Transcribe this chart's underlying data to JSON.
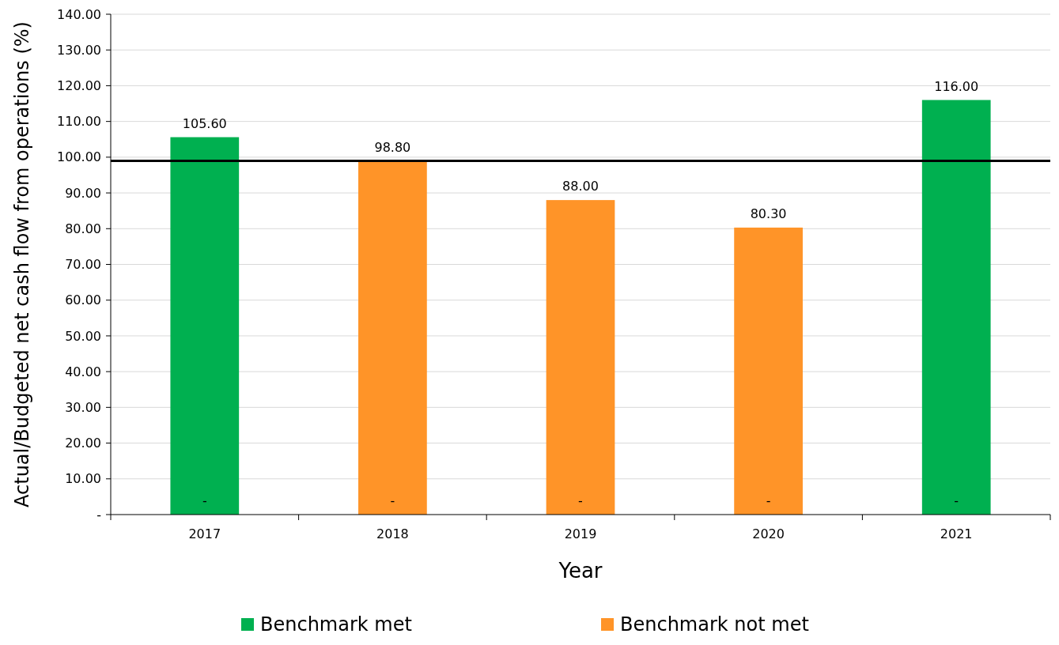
{
  "chart_data": {
    "type": "bar",
    "xlabel": "Year",
    "ylabel": "Actual/Budgeted net cash flow from operations (%)",
    "categories": [
      "2017",
      "2018",
      "2019",
      "2020",
      "2021"
    ],
    "series": [
      {
        "name": "Benchmark met",
        "color": "#00b050",
        "values": [
          105.6,
          0,
          0,
          0,
          116
        ],
        "value_labels": [
          "105.60",
          "-",
          "-",
          "-",
          "116.00"
        ]
      },
      {
        "name": "Benchmark not met",
        "color": "#ff9428",
        "values": [
          0,
          98.8,
          88,
          80.3,
          0
        ],
        "value_labels": [
          "-",
          "98.80",
          "88.00",
          "80.30",
          "-"
        ]
      }
    ],
    "ylim": [
      0,
      140
    ],
    "yticks": [
      {
        "value": 0,
        "label": "-"
      },
      {
        "value": 10,
        "label": "10.00"
      },
      {
        "value": 20,
        "label": "20.00"
      },
      {
        "value": 30,
        "label": "30.00"
      },
      {
        "value": 40,
        "label": "40.00"
      },
      {
        "value": 50,
        "label": "50.00"
      },
      {
        "value": 60,
        "label": "60.00"
      },
      {
        "value": 70,
        "label": "70.00"
      },
      {
        "value": 80,
        "label": "80.00"
      },
      {
        "value": 90,
        "label": "90.00"
      },
      {
        "value": 100,
        "label": "100.00"
      },
      {
        "value": 110,
        "label": "110.00"
      },
      {
        "value": 120,
        "label": "120.00"
      },
      {
        "value": 130,
        "label": "130.00"
      },
      {
        "value": 140,
        "label": "140.00"
      }
    ],
    "grid": "y",
    "legend": "bottom",
    "ref_lines": [
      {
        "axis": "y",
        "value": 99,
        "color": "#000000"
      }
    ]
  }
}
